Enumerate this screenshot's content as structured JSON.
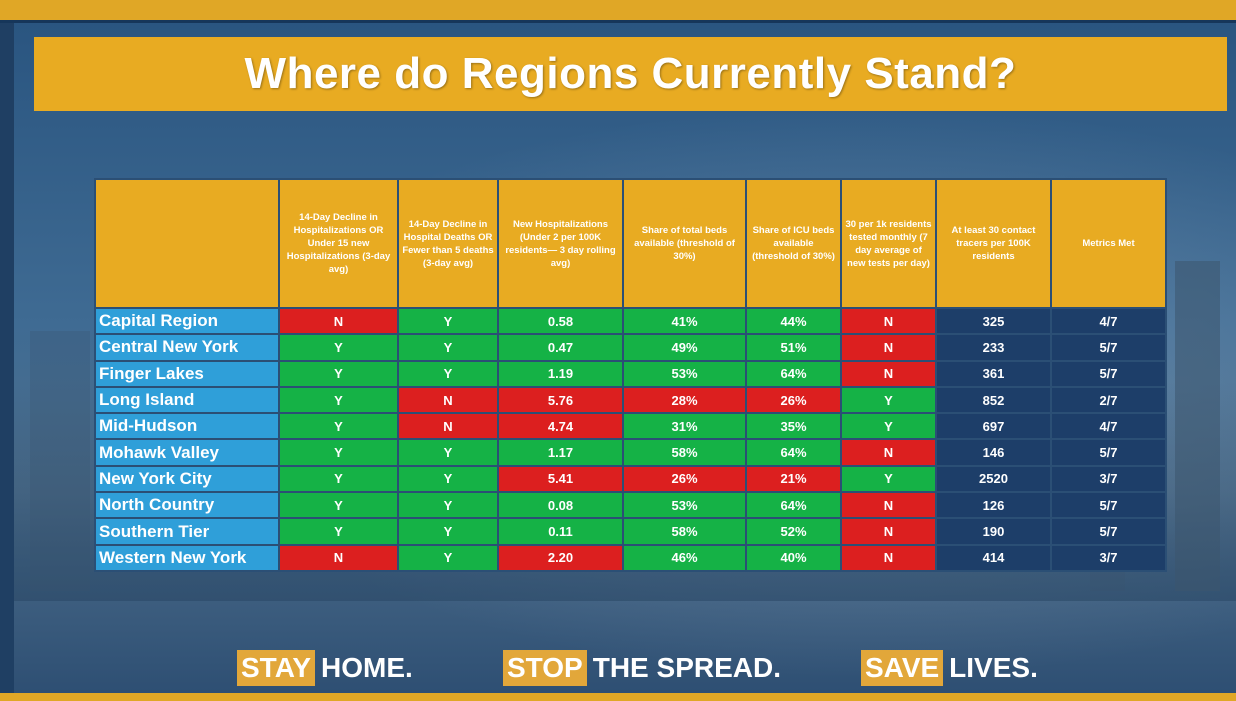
{
  "title": "Where do Regions Currently Stand?",
  "table": {
    "headers": [
      "",
      "14-Day Decline in Hospitalizations OR Under 15 new Hospitalizations (3-day avg)",
      "14-Day Decline in Hospital Deaths OR Fewer than 5 deaths (3-day avg)",
      "New Hospitalizations (Under 2 per 100K residents— 3 day rolling avg)",
      "Share of total beds available (threshold of 30%)",
      "Share of ICU beds available (threshold of 30%)",
      "30 per 1k residents tested monthly (7 day average of new tests per day)",
      "At least 30 contact tracers per 100K residents",
      "Metrics Met"
    ],
    "rows": [
      {
        "region": "Capital Region",
        "c1": "N",
        "c2": "Y",
        "c3": "0.58",
        "c4": "41%",
        "c5": "44%",
        "c6": "N",
        "c7": "325",
        "c8": "4/7"
      },
      {
        "region": "Central New York",
        "c1": "Y",
        "c2": "Y",
        "c3": "0.47",
        "c4": "49%",
        "c5": "51%",
        "c6": "N",
        "c7": "233",
        "c8": "5/7"
      },
      {
        "region": "Finger Lakes",
        "c1": "Y",
        "c2": "Y",
        "c3": "1.19",
        "c4": "53%",
        "c5": "64%",
        "c6": "N",
        "c7": "361",
        "c8": "5/7"
      },
      {
        "region": "Long Island",
        "c1": "Y",
        "c2": "N",
        "c3": "5.76",
        "c4": "28%",
        "c5": "26%",
        "c6": "Y",
        "c7": "852",
        "c8": "2/7"
      },
      {
        "region": "Mid-Hudson",
        "c1": "Y",
        "c2": "N",
        "c3": "4.74",
        "c4": "31%",
        "c5": "35%",
        "c6": "Y",
        "c7": "697",
        "c8": "4/7"
      },
      {
        "region": "Mohawk Valley",
        "c1": "Y",
        "c2": "Y",
        "c3": "1.17",
        "c4": "58%",
        "c5": "64%",
        "c6": "N",
        "c7": "146",
        "c8": "5/7"
      },
      {
        "region": "New York City",
        "c1": "Y",
        "c2": "Y",
        "c3": "5.41",
        "c4": "26%",
        "c5": "21%",
        "c6": "Y",
        "c7": "2520",
        "c8": "3/7"
      },
      {
        "region": "North Country",
        "c1": "Y",
        "c2": "Y",
        "c3": "0.08",
        "c4": "53%",
        "c5": "64%",
        "c6": "N",
        "c7": "126",
        "c8": "5/7"
      },
      {
        "region": "Southern Tier",
        "c1": "Y",
        "c2": "Y",
        "c3": "0.11",
        "c4": "58%",
        "c5": "52%",
        "c6": "N",
        "c7": "190",
        "c8": "5/7"
      },
      {
        "region": "Western New York",
        "c1": "N",
        "c2": "Y",
        "c3": "2.20",
        "c4": "46%",
        "c5": "40%",
        "c6": "N",
        "c7": "414",
        "c8": "3/7"
      }
    ],
    "status": [
      [
        "red",
        "green",
        "green",
        "green",
        "green",
        "red"
      ],
      [
        "green",
        "green",
        "green",
        "green",
        "green",
        "red"
      ],
      [
        "green",
        "green",
        "green",
        "green",
        "green",
        "red"
      ],
      [
        "green",
        "red",
        "red",
        "red",
        "red",
        "green"
      ],
      [
        "green",
        "red",
        "red",
        "green",
        "green",
        "green"
      ],
      [
        "green",
        "green",
        "green",
        "green",
        "green",
        "red"
      ],
      [
        "green",
        "green",
        "red",
        "red",
        "red",
        "green"
      ],
      [
        "green",
        "green",
        "green",
        "green",
        "green",
        "red"
      ],
      [
        "green",
        "green",
        "green",
        "green",
        "green",
        "red"
      ],
      [
        "red",
        "green",
        "red",
        "green",
        "green",
        "red"
      ]
    ]
  },
  "slogans": [
    {
      "highlight": "STAY",
      "rest": "HOME."
    },
    {
      "highlight": "STOP",
      "rest": "THE SPREAD."
    },
    {
      "highlight": "SAVE",
      "rest": "LIVES."
    }
  ],
  "colors": {
    "gold": "#e8ab22",
    "green": "#15b246",
    "red": "#dc1f1f",
    "region_blue": "#2f9fd9",
    "navy": "#1d3e69"
  }
}
